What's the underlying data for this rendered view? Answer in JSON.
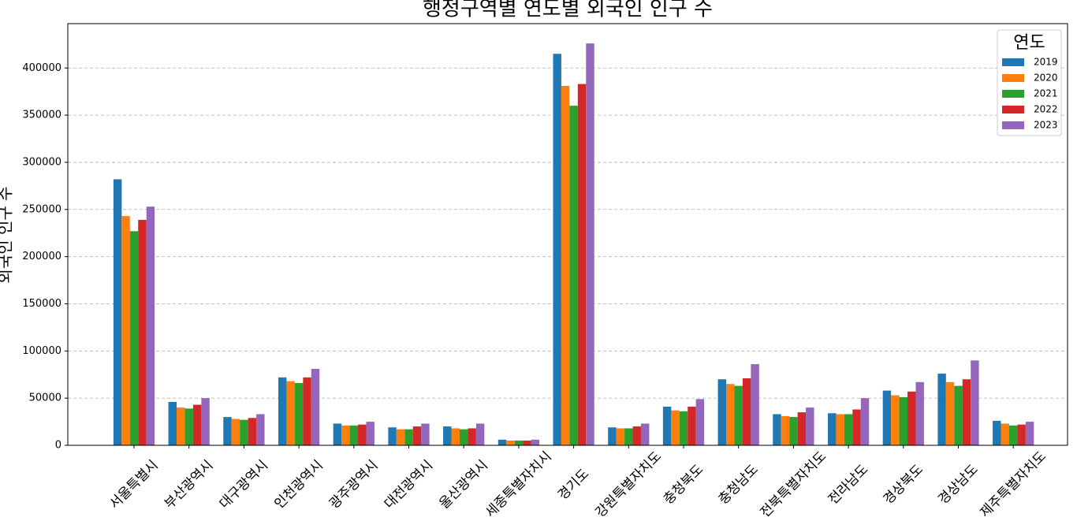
{
  "chart_data": {
    "type": "bar",
    "title": "행정구역별 연도별 외국인 인구 수",
    "y_label": "외국인 인구 수",
    "categories": [
      "서울특별시",
      "부산광역시",
      "대구광역시",
      "인천광역시",
      "광주광역시",
      "대전광역시",
      "울산광역시",
      "세종특별자치시",
      "경기도",
      "강원특별자치도",
      "충청북도",
      "충청남도",
      "전북특별자치도",
      "전라남도",
      "경상북도",
      "경상남도",
      "제주특별자치도"
    ],
    "series": [
      {
        "name": "2019",
        "color": "#1f77b4",
        "values": [
          282000,
          46000,
          30000,
          72000,
          23000,
          19000,
          20000,
          6000,
          415000,
          19000,
          41000,
          70000,
          33000,
          34000,
          58000,
          76000,
          26000
        ]
      },
      {
        "name": "2020",
        "color": "#ff7f0e",
        "values": [
          243000,
          40000,
          28000,
          68000,
          21000,
          17000,
          18000,
          5000,
          381000,
          18000,
          37000,
          65000,
          31000,
          33000,
          53000,
          67000,
          23000
        ]
      },
      {
        "name": "2021",
        "color": "#2ca02c",
        "values": [
          227000,
          39000,
          27000,
          66000,
          21000,
          17000,
          17000,
          5000,
          360000,
          18000,
          36000,
          63000,
          30000,
          33000,
          51000,
          63000,
          21000
        ]
      },
      {
        "name": "2022",
        "color": "#d62728",
        "values": [
          239000,
          43000,
          29000,
          72000,
          22000,
          20000,
          18000,
          5000,
          383000,
          20000,
          41000,
          71000,
          35000,
          38000,
          57000,
          70000,
          22000
        ]
      },
      {
        "name": "2023",
        "color": "#9467bd",
        "values": [
          253000,
          50000,
          33000,
          81000,
          25000,
          23000,
          23000,
          6000,
          426000,
          23000,
          49000,
          86000,
          40000,
          50000,
          67000,
          90000,
          25000
        ]
      }
    ],
    "ylim": [
      0,
      447000
    ],
    "yticks": [
      0,
      50000,
      100000,
      150000,
      200000,
      250000,
      300000,
      350000,
      400000
    ],
    "grid": true,
    "legend_title": "연도",
    "legend_position": "upper right"
  }
}
